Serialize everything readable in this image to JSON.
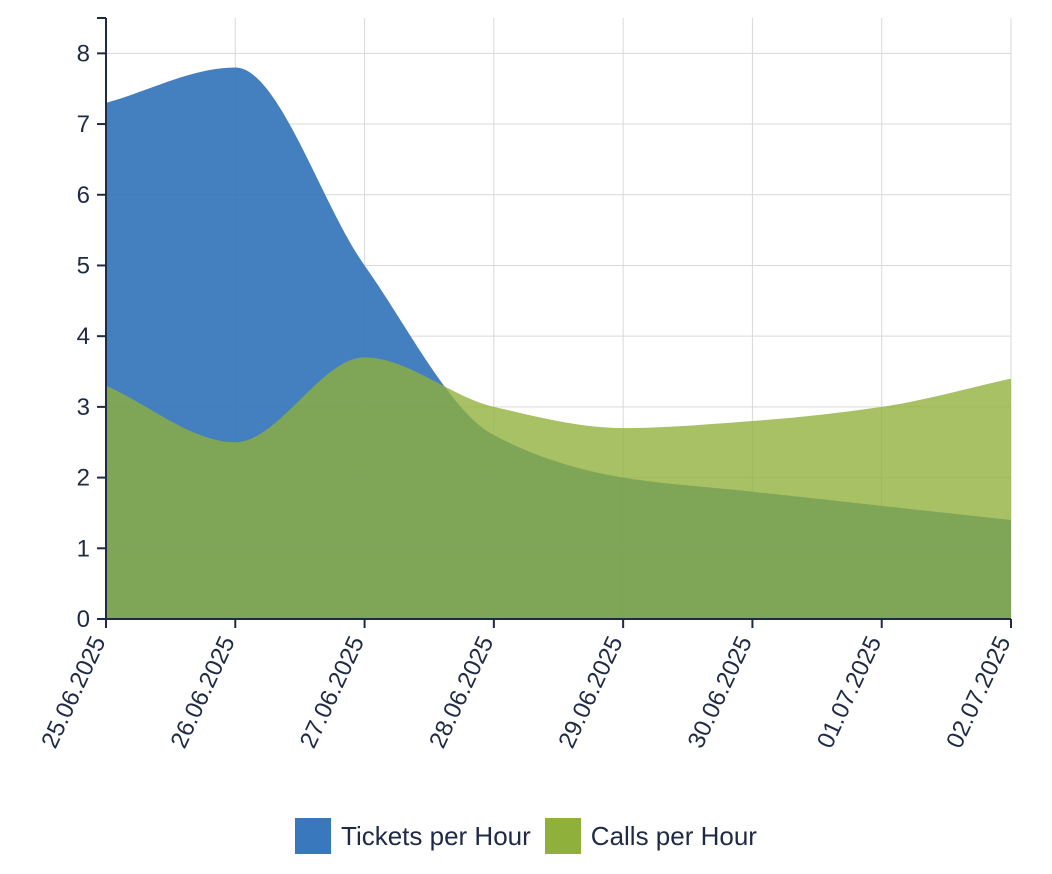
{
  "chart_data": {
    "type": "area",
    "title": "",
    "xlabel": "",
    "ylabel": "",
    "x": [
      "25.06.2025",
      "26.06.2025",
      "27.06.2025",
      "28.06.2025",
      "29.06.2025",
      "30.06.2025",
      "01.07.2025",
      "02.07.2025"
    ],
    "ylim": [
      0,
      8.5
    ],
    "yticks": [
      0,
      1,
      2,
      3,
      4,
      5,
      6,
      7,
      8
    ],
    "grid": true,
    "legend_position": "bottom",
    "series": [
      {
        "name": "Tickets per Hour",
        "color": "#3a78bd",
        "opacity": 0.95,
        "values": [
          7.3,
          7.8,
          5.0,
          2.6,
          2.0,
          1.8,
          1.6,
          1.4
        ]
      },
      {
        "name": "Calls per Hour",
        "color": "#8fb03a",
        "opacity": 0.78,
        "values": [
          3.3,
          2.5,
          3.7,
          3.0,
          2.7,
          2.8,
          3.0,
          3.4
        ]
      }
    ]
  }
}
